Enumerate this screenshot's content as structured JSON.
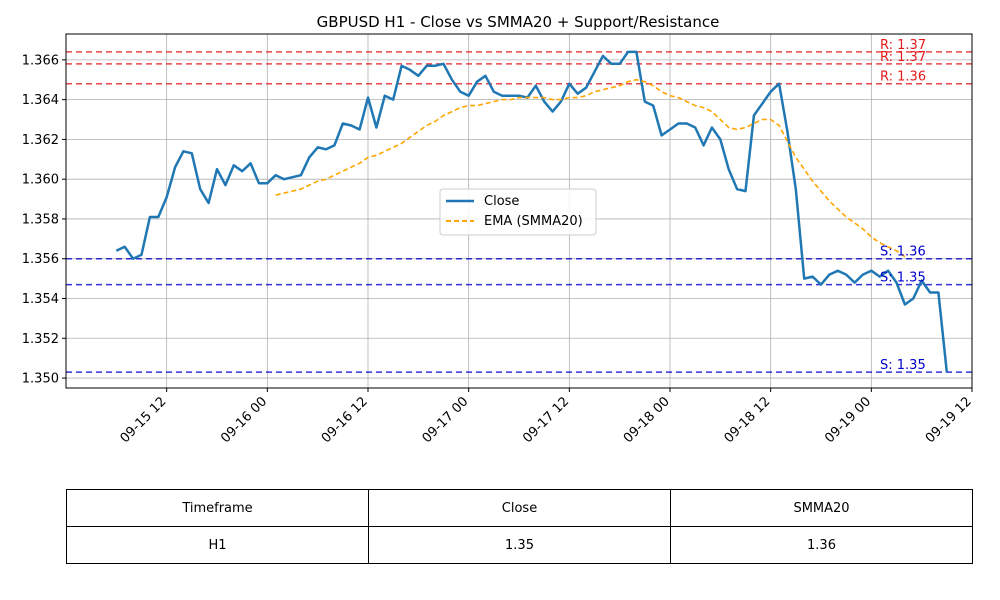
{
  "chart_data": {
    "type": "line",
    "title": "GBPUSD H1 - Close vs SMMA20 + Support/Resistance",
    "xlabel": "",
    "ylabel": "",
    "x_range": [
      "2025-09-15 00:00",
      "2025-09-19 12:00"
    ],
    "ylim": [
      1.3495,
      1.3673
    ],
    "x_ticks": [
      {
        "time": "2025-09-15 12:00",
        "label": "09-15 12"
      },
      {
        "time": "2025-09-16 00:00",
        "label": "09-16 00"
      },
      {
        "time": "2025-09-16 12:00",
        "label": "09-16 12"
      },
      {
        "time": "2025-09-17 00:00",
        "label": "09-17 00"
      },
      {
        "time": "2025-09-17 12:00",
        "label": "09-17 12"
      },
      {
        "time": "2025-09-18 00:00",
        "label": "09-18 00"
      },
      {
        "time": "2025-09-18 12:00",
        "label": "09-18 12"
      },
      {
        "time": "2025-09-19 00:00",
        "label": "09-19 00"
      },
      {
        "time": "2025-09-19 12:00",
        "label": "09-19 12"
      }
    ],
    "y_ticks": [
      1.35,
      1.352,
      1.354,
      1.356,
      1.358,
      1.36,
      1.362,
      1.364,
      1.366
    ],
    "y_tick_labels": [
      "1.350",
      "1.352",
      "1.354",
      "1.356",
      "1.358",
      "1.360",
      "1.362",
      "1.364",
      "1.366"
    ],
    "grid": true,
    "legend_position": "center",
    "series": [
      {
        "name": "Close",
        "color": "#1f77b4",
        "style": "solid",
        "start": "2025-09-15 06:00",
        "interval_hours": 1,
        "values": [
          1.3564,
          1.3566,
          1.356,
          1.3562,
          1.3581,
          1.3581,
          1.3591,
          1.3606,
          1.3614,
          1.3613,
          1.3595,
          1.3588,
          1.3605,
          1.3597,
          1.3607,
          1.3604,
          1.3608,
          1.3598,
          1.3598,
          1.3602,
          1.36,
          1.3601,
          1.3602,
          1.3611,
          1.3616,
          1.3615,
          1.3617,
          1.3628,
          1.3627,
          1.3625,
          1.3641,
          1.3626,
          1.3642,
          1.364,
          1.3657,
          1.3655,
          1.3652,
          1.3657,
          1.3657,
          1.3658,
          1.365,
          1.3644,
          1.3642,
          1.3649,
          1.3652,
          1.3644,
          1.3642,
          1.3642,
          1.3642,
          1.3641,
          1.3647,
          1.3639,
          1.3634,
          1.3639,
          1.3648,
          1.3643,
          1.3646,
          1.3654,
          1.3662,
          1.3658,
          1.3658,
          1.3664,
          1.3664,
          1.3639,
          1.3637,
          1.3622,
          1.3625,
          1.3628,
          1.3628,
          1.3626,
          1.3617,
          1.3626,
          1.362,
          1.3605,
          1.3595,
          1.3594,
          1.3632,
          1.3638,
          1.3644,
          1.3648,
          1.3624,
          1.3595,
          1.355,
          1.3551,
          1.3547,
          1.3552,
          1.3554,
          1.3552,
          1.3548,
          1.3552,
          1.3554,
          1.3551,
          1.3554,
          1.3548,
          1.3537,
          1.354,
          1.3549,
          1.3543,
          1.3543,
          1.3503
        ]
      },
      {
        "name": "EMA (SMMA20)",
        "color": "#ffa500",
        "style": "dashed",
        "start": "2025-09-16 01:00",
        "interval_hours": 1,
        "values": [
          1.3592,
          1.3593,
          1.3594,
          1.3595,
          1.3597,
          1.3599,
          1.36,
          1.3602,
          1.3604,
          1.3606,
          1.3608,
          1.3611,
          1.3612,
          1.3614,
          1.3616,
          1.3618,
          1.3621,
          1.3624,
          1.3627,
          1.3629,
          1.3632,
          1.3634,
          1.3636,
          1.3637,
          1.3637,
          1.3638,
          1.3639,
          1.364,
          1.364,
          1.3641,
          1.3641,
          1.3641,
          1.3641,
          1.364,
          1.364,
          1.3641,
          1.3641,
          1.3642,
          1.3644,
          1.3645,
          1.3646,
          1.3647,
          1.3649,
          1.365,
          1.3649,
          1.3647,
          1.3644,
          1.3642,
          1.3641,
          1.3639,
          1.3637,
          1.3636,
          1.3634,
          1.363,
          1.3626,
          1.3625,
          1.3626,
          1.3628,
          1.363,
          1.363,
          1.3627,
          1.3619,
          1.3611,
          1.3605,
          1.3599,
          1.3594,
          1.3589,
          1.3585,
          1.3581,
          1.3578,
          1.3575,
          1.3571,
          1.3568,
          1.3566,
          1.3564,
          1.3561
        ]
      }
    ],
    "hlines": [
      {
        "kind": "resistance",
        "value": 1.3664,
        "label": "R: 1.37",
        "color": "#e41a1c"
      },
      {
        "kind": "resistance",
        "value": 1.3658,
        "label": "R: 1.37",
        "color": "#e41a1c"
      },
      {
        "kind": "resistance",
        "value": 1.3648,
        "label": "R: 1.36",
        "color": "#e41a1c"
      },
      {
        "kind": "support",
        "value": 1.356,
        "label": "S: 1.36",
        "color": "#0000cc"
      },
      {
        "kind": "support",
        "value": 1.3547,
        "label": "S: 1.35",
        "color": "#0000cc"
      },
      {
        "kind": "support",
        "value": 1.3503,
        "label": "S: 1.35",
        "color": "#0000cc"
      }
    ]
  },
  "table": {
    "headers": [
      "Timeframe",
      "Close",
      "SMMA20"
    ],
    "rows": [
      [
        "H1",
        "1.35",
        "1.36"
      ]
    ]
  }
}
